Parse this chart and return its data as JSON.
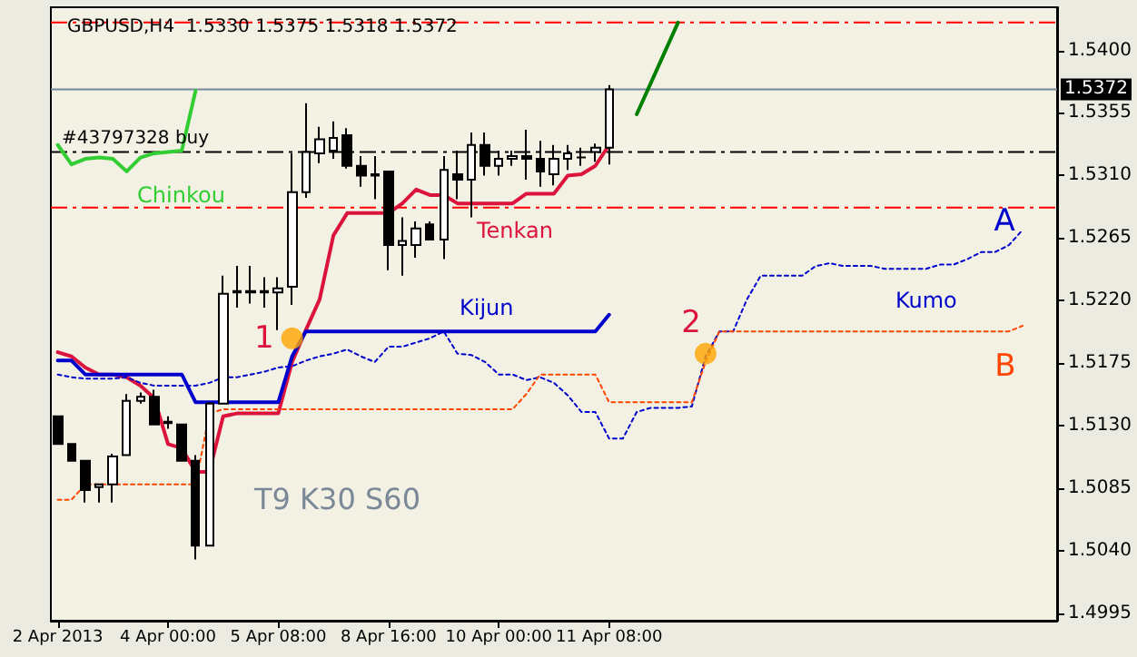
{
  "chart_data": {
    "type": "candlestick",
    "title": "GBPUSD,H4  1.5330 1.5375 1.5318 1.5372",
    "categories": [
      "2 Apr 2013",
      null,
      null,
      null,
      null,
      null,
      null,
      null,
      "4 Apr 00:00",
      null,
      null,
      null,
      null,
      null,
      null,
      null,
      "5 Apr 08:00",
      null,
      null,
      null,
      null,
      null,
      null,
      null,
      "8 Apr 16:00",
      null,
      null,
      null,
      null,
      null,
      null,
      null,
      "10 Apr 00:00",
      null,
      null,
      null,
      null,
      null,
      null,
      null,
      "11 Apr 08:00",
      null,
      null,
      null,
      null,
      null,
      null,
      null,
      null,
      null,
      null,
      null,
      null,
      null,
      null,
      null,
      null,
      null,
      null,
      null,
      null,
      null,
      null,
      null,
      null,
      null,
      null,
      null,
      null,
      null,
      null,
      null,
      null
    ],
    "ohlc": [
      [
        1.5137,
        1.5137,
        1.5117,
        1.5117
      ],
      [
        1.5117,
        1.5117,
        1.5105,
        1.5105
      ],
      [
        1.5105,
        1.5105,
        1.5075,
        1.5084
      ],
      [
        1.5086,
        1.5088,
        1.5075,
        1.5088
      ],
      [
        1.5088,
        1.511,
        1.5075,
        1.5108
      ],
      [
        1.5109,
        1.5153,
        1.5109,
        1.5148
      ],
      [
        1.5148,
        1.5154,
        1.5146,
        1.5151
      ],
      [
        1.5151,
        1.5156,
        1.5131,
        1.5131
      ],
      [
        1.5133,
        1.5137,
        1.5128,
        1.5132
      ],
      [
        1.5131,
        1.5131,
        1.5105,
        1.5105
      ],
      [
        1.5105,
        1.5109,
        1.5034,
        1.5044
      ],
      [
        1.5044,
        1.5147,
        1.5044,
        1.5146
      ],
      [
        1.5146,
        1.5238,
        1.5146,
        1.5225
      ],
      [
        1.5227,
        1.5245,
        1.5215,
        1.5226
      ],
      [
        1.5227,
        1.5245,
        1.5218,
        1.5226
      ],
      [
        1.5227,
        1.5237,
        1.5215,
        1.5226
      ],
      [
        1.5226,
        1.5237,
        1.5199,
        1.5229
      ],
      [
        1.523,
        1.5326,
        1.5217,
        1.5298
      ],
      [
        1.5298,
        1.5362,
        1.5294,
        1.5327
      ],
      [
        1.5326,
        1.5345,
        1.5319,
        1.5336
      ],
      [
        1.5328,
        1.5349,
        1.5322,
        1.5337
      ],
      [
        1.5339,
        1.5344,
        1.5315,
        1.5317
      ],
      [
        1.5317,
        1.5324,
        1.5302,
        1.531
      ],
      [
        1.5311,
        1.5324,
        1.5293,
        1.531
      ],
      [
        1.5313,
        1.5313,
        1.5242,
        1.526
      ],
      [
        1.526,
        1.528,
        1.5238,
        1.5263
      ],
      [
        1.526,
        1.5277,
        1.5251,
        1.5272
      ],
      [
        1.5275,
        1.5277,
        1.5264,
        1.5264
      ],
      [
        1.5264,
        1.5324,
        1.525,
        1.5314
      ],
      [
        1.5311,
        1.5328,
        1.5293,
        1.5307
      ],
      [
        1.5307,
        1.5341,
        1.528,
        1.5332
      ],
      [
        1.5332,
        1.5341,
        1.531,
        1.5317
      ],
      [
        1.5317,
        1.5328,
        1.531,
        1.5322
      ],
      [
        1.5322,
        1.5328,
        1.5317,
        1.5324
      ],
      [
        1.5324,
        1.5343,
        1.5307,
        1.5322
      ],
      [
        1.5322,
        1.5335,
        1.5302,
        1.5313
      ],
      [
        1.5311,
        1.5332,
        1.5303,
        1.5322
      ],
      [
        1.5322,
        1.5332,
        1.5314,
        1.5326
      ],
      [
        1.5323,
        1.533,
        1.5317,
        1.5323
      ],
      [
        1.5327,
        1.5333,
        1.532,
        1.533
      ],
      [
        1.533,
        1.5375,
        1.5318,
        1.5372
      ],
      null,
      null,
      null,
      null,
      null,
      null,
      null,
      null,
      null,
      null,
      null,
      null,
      null,
      null,
      null,
      null,
      null,
      null,
      null,
      null,
      null,
      null,
      null,
      null,
      null,
      null,
      null,
      null,
      null,
      null,
      null,
      null
    ],
    "series": [
      {
        "name": "Tenkan",
        "type": "line",
        "color": "#dc143c",
        "line_style": "solid",
        "values": [
          1.5183,
          1.518,
          1.5172,
          1.5167,
          1.5167,
          1.5165,
          1.5159,
          1.515,
          1.5117,
          1.5114,
          1.5097,
          1.5097,
          1.5137,
          1.5139,
          1.5139,
          1.5139,
          1.5139,
          1.5176,
          1.5199,
          1.5221,
          1.5267,
          1.5283,
          1.5283,
          1.5283,
          1.5283,
          1.529,
          1.53,
          1.5296,
          1.5296,
          1.529,
          1.529,
          1.529,
          1.529,
          1.529,
          1.5297,
          1.5297,
          1.5297,
          1.531,
          1.5311,
          1.5317,
          1.5332,
          null,
          null,
          null,
          null,
          null,
          null,
          null,
          null,
          null,
          null,
          null,
          null,
          null,
          null,
          null,
          null,
          null,
          null,
          null,
          null,
          null,
          null,
          null,
          null,
          null,
          null,
          null,
          null,
          null,
          null,
          null,
          null
        ]
      },
      {
        "name": "Kijun",
        "type": "line",
        "color": "#0000cd",
        "line_style": "solid",
        "values": [
          1.5177,
          1.5177,
          1.5167,
          1.5167,
          1.5167,
          1.5167,
          1.5167,
          1.5167,
          1.5167,
          1.5167,
          1.5147,
          1.5147,
          1.5147,
          1.5147,
          1.5147,
          1.5147,
          1.5147,
          1.518,
          1.5198,
          1.5198,
          1.5198,
          1.5198,
          1.5198,
          1.5198,
          1.5198,
          1.5198,
          1.5198,
          1.5198,
          1.5198,
          1.5198,
          1.5198,
          1.5198,
          1.5198,
          1.5198,
          1.5198,
          1.5198,
          1.5198,
          1.5198,
          1.5198,
          1.5198,
          1.521,
          null,
          null,
          null,
          null,
          null,
          null,
          null,
          null,
          null,
          null,
          null,
          null,
          null,
          null,
          null,
          null,
          null,
          null,
          null,
          null,
          null,
          null,
          null,
          null,
          null,
          null,
          null,
          null,
          null,
          null,
          null,
          null
        ]
      },
      {
        "name": "Chinkou",
        "type": "line",
        "color": "#32cd32",
        "line_style": "solid",
        "values": [
          1.5332,
          1.5318,
          1.5322,
          1.5323,
          1.5322,
          1.5313,
          1.5323,
          1.5326,
          1.5327,
          1.5328,
          1.5371,
          null,
          null,
          null,
          null,
          null,
          null,
          null,
          null,
          null,
          null,
          null,
          null,
          null,
          null,
          null,
          null,
          null,
          null,
          null,
          null,
          null,
          null,
          null,
          null,
          null,
          null,
          null,
          null,
          null,
          null,
          null,
          null,
          null,
          null,
          null,
          null,
          null,
          null,
          null,
          null,
          null,
          null,
          null,
          null,
          null,
          null,
          null,
          null,
          null,
          null,
          null,
          null,
          null,
          null,
          null,
          null,
          null,
          null,
          null,
          null,
          null,
          null
        ]
      },
      {
        "name": "A",
        "type": "line",
        "color": "#0000cd",
        "line_style": "dotted",
        "values": [
          1.5167,
          1.5165,
          1.5164,
          1.5164,
          1.5164,
          1.5165,
          1.5161,
          1.5159,
          1.5159,
          1.5159,
          1.5159,
          1.5161,
          1.5165,
          1.5165,
          1.5167,
          1.5169,
          1.5172,
          1.5173,
          1.5177,
          1.518,
          1.5182,
          1.5185,
          1.518,
          1.5176,
          1.5187,
          1.5187,
          1.519,
          1.5193,
          1.5198,
          1.5182,
          1.5181,
          1.5176,
          1.5167,
          1.5167,
          1.5163,
          1.5165,
          1.5161,
          1.5152,
          1.514,
          1.514,
          1.5121,
          1.5121,
          1.514,
          1.5143,
          1.5143,
          1.5143,
          1.5144,
          1.518,
          1.5198,
          1.5198,
          1.5221,
          1.5238,
          1.5238,
          1.5238,
          1.5238,
          1.5245,
          1.5247,
          1.5245,
          1.5245,
          1.5245,
          1.5243,
          1.5243,
          1.5243,
          1.5243,
          1.5246,
          1.5246,
          1.525,
          1.5255,
          1.5255,
          1.526,
          1.5271,
          null,
          null
        ]
      },
      {
        "name": "B",
        "type": "line",
        "color": "#ff4500",
        "line_style": "dotted",
        "values": [
          1.5077,
          1.5077,
          1.5088,
          1.5088,
          1.5088,
          1.5088,
          1.5088,
          1.5088,
          1.5088,
          1.5088,
          1.5088,
          1.5139,
          1.5142,
          1.5142,
          1.5142,
          1.5142,
          1.5142,
          1.5142,
          1.5142,
          1.5142,
          1.5142,
          1.5142,
          1.5142,
          1.5142,
          1.5142,
          1.5142,
          1.5142,
          1.5142,
          1.5142,
          1.5142,
          1.5142,
          1.5142,
          1.5142,
          1.5142,
          1.5153,
          1.5167,
          1.5167,
          1.5167,
          1.5167,
          1.5167,
          1.5147,
          1.5147,
          1.5147,
          1.5147,
          1.5147,
          1.5147,
          1.5147,
          1.5176,
          1.5198,
          1.5198,
          1.5198,
          1.5198,
          1.5198,
          1.5198,
          1.5198,
          1.5198,
          1.5198,
          1.5198,
          1.5198,
          1.5198,
          1.5198,
          1.5198,
          1.5198,
          1.5198,
          1.5198,
          1.5198,
          1.5198,
          1.5198,
          1.5198,
          1.5198,
          1.5202,
          null,
          null
        ]
      },
      {
        "type": "line",
        "color": "#008000",
        "line_style": "solid",
        "values": [
          null,
          null,
          null,
          null,
          null,
          null,
          null,
          null,
          null,
          null,
          null,
          null,
          null,
          null,
          null,
          null,
          null,
          null,
          null,
          null,
          null,
          null,
          null,
          null,
          null,
          null,
          null,
          null,
          null,
          null,
          null,
          null,
          null,
          null,
          null,
          null,
          null,
          null,
          null,
          null,
          null,
          null,
          1.5354,
          1.5376,
          1.5398,
          1.542,
          null,
          null,
          null,
          null,
          null,
          null,
          null,
          null,
          null,
          null,
          null,
          null,
          null,
          null,
          null,
          null,
          null,
          null,
          null,
          null,
          null,
          null,
          null,
          null,
          null,
          null,
          null
        ]
      },
      {
        "type": "scatter",
        "color": "#ffa500",
        "marker": "circle",
        "values": [
          null,
          null,
          null,
          null,
          null,
          null,
          null,
          null,
          null,
          null,
          null,
          null,
          null,
          null,
          null,
          null,
          null,
          1.5193,
          null,
          null,
          null,
          null,
          null,
          null,
          null,
          null,
          null,
          null,
          null,
          null,
          null,
          null,
          null,
          null,
          null,
          null,
          null,
          null,
          null,
          null,
          null,
          null,
          null,
          null,
          null,
          null,
          null,
          1.5182,
          null,
          null,
          null,
          null,
          null,
          null,
          null,
          null,
          null,
          null,
          null,
          null,
          null,
          null,
          null,
          null,
          null,
          null,
          null,
          null,
          null,
          null,
          null,
          null,
          null
        ]
      }
    ],
    "ylim": [
      1.499,
      1.5431
    ],
    "yticks": [
      {
        "value": 1.54,
        "label": "1.5400"
      },
      {
        "value": 1.5355,
        "label": "1.5355"
      },
      {
        "value": 1.531,
        "label": "1.5310"
      },
      {
        "value": 1.5265,
        "label": "1.5265"
      },
      {
        "value": 1.522,
        "label": "1.5220"
      },
      {
        "value": 1.5175,
        "label": "1.5175"
      },
      {
        "value": 1.513,
        "label": "1.5130"
      },
      {
        "value": 1.5085,
        "label": "1.5085"
      },
      {
        "value": 1.504,
        "label": "1.5040"
      },
      {
        "value": 1.4995,
        "label": "1.4995"
      }
    ],
    "ref_lines": [
      {
        "axis": "y",
        "value": 1.5372,
        "label": "1.5372",
        "color": "#778899",
        "line_style": "solid"
      },
      {
        "axis": "y",
        "value": 1.5327,
        "label": "#43797328 buy",
        "color": "#000000",
        "line_style": "dashed"
      },
      {
        "axis": "y",
        "value": 1.5287,
        "color": "#ff0000",
        "line_style": "dashed"
      },
      {
        "axis": "y",
        "value": 1.542,
        "color": "#ff0000",
        "line_style": "dashed"
      }
    ],
    "annotations": [
      "Kumo",
      "T9 K30 S60",
      "1",
      "2"
    ],
    "marker": "none",
    "legend": false,
    "grid": false
  }
}
